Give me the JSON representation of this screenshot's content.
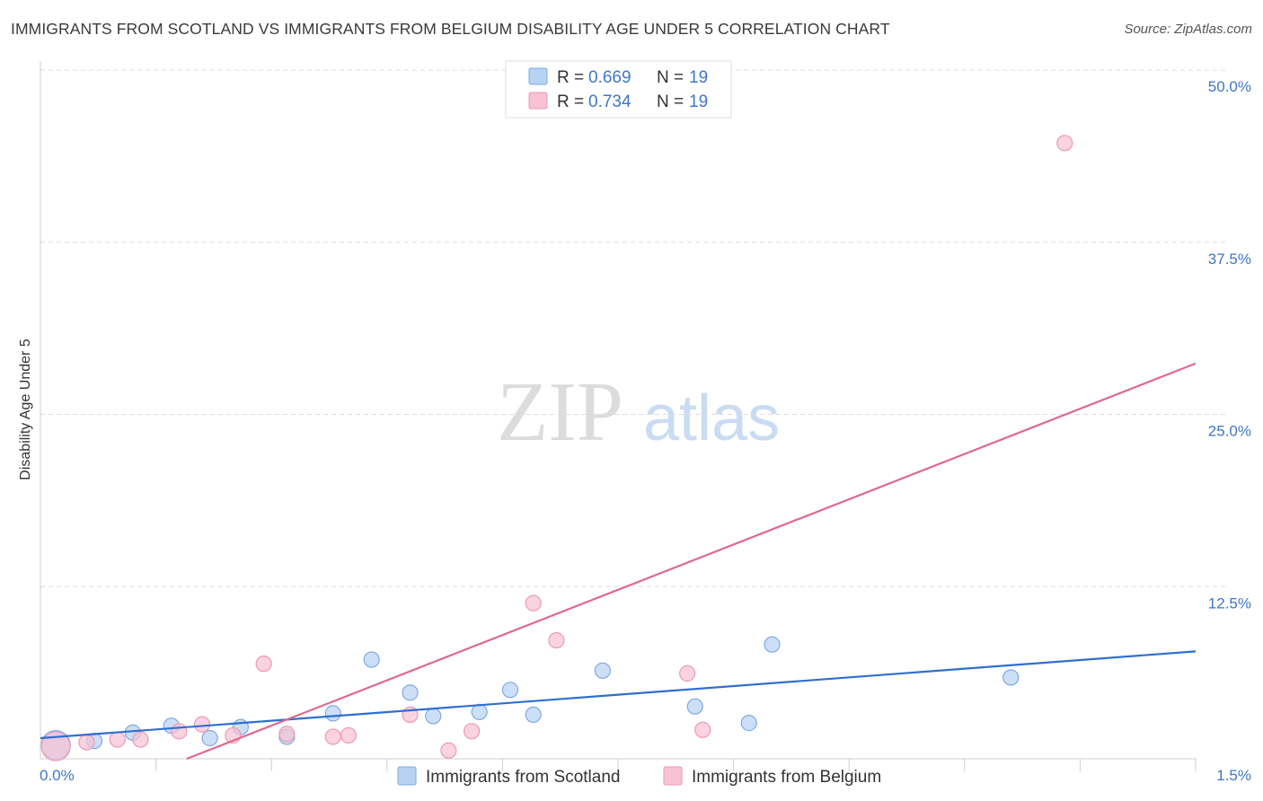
{
  "header": {
    "title": "IMMIGRANTS FROM SCOTLAND VS IMMIGRANTS FROM BELGIUM DISABILITY AGE UNDER 5 CORRELATION CHART",
    "source": "Source: ZipAtlas.com"
  },
  "watermark": {
    "zip": "ZIP",
    "atlas": "atlas"
  },
  "colors": {
    "blue_fill": "#b7d2f3",
    "blue_stroke": "#7eaae3",
    "blue_line": "#2f6fcf",
    "pink_fill": "#f7c2d3",
    "pink_stroke": "#ee98b4",
    "pink_line": "#e0688f",
    "tick_label": "#3f76c9",
    "grid": "#dddddd"
  },
  "legend_top": {
    "rows": [
      {
        "r_label": "R = ",
        "r_value": "0.669",
        "n_label": "N = ",
        "n_value": "19"
      },
      {
        "r_label": "R = ",
        "r_value": "0.734",
        "n_label": "N = ",
        "n_value": "19"
      }
    ]
  },
  "chart_data": {
    "type": "scatter",
    "title": "IMMIGRANTS FROM SCOTLAND VS IMMIGRANTS FROM BELGIUM DISABILITY AGE UNDER 5 CORRELATION CHART",
    "xlabel": "",
    "ylabel": "Disability Age Under 5",
    "xlim": [
      0,
      1.5
    ],
    "ylim": [
      0,
      50
    ],
    "x_tick_labels": [
      "0.0%",
      "1.5%"
    ],
    "y_ticks": [
      12.5,
      25.0,
      37.5,
      50.0
    ],
    "y_tick_labels": [
      "12.5%",
      "25.0%",
      "37.5%",
      "50.0%"
    ],
    "grid": true,
    "legend_position": "bottom-center",
    "series": [
      {
        "name": "Immigrants from Scotland",
        "color": "#7eaae3",
        "points": [
          {
            "x": 0.02,
            "y": 1.0,
            "large": true
          },
          {
            "x": 0.07,
            "y": 1.3
          },
          {
            "x": 0.12,
            "y": 1.9
          },
          {
            "x": 0.17,
            "y": 2.4
          },
          {
            "x": 0.22,
            "y": 1.5
          },
          {
            "x": 0.26,
            "y": 2.3
          },
          {
            "x": 0.32,
            "y": 1.6
          },
          {
            "x": 0.38,
            "y": 3.3
          },
          {
            "x": 0.43,
            "y": 7.2
          },
          {
            "x": 0.48,
            "y": 4.8
          },
          {
            "x": 0.51,
            "y": 3.1
          },
          {
            "x": 0.57,
            "y": 3.4
          },
          {
            "x": 0.61,
            "y": 5.0
          },
          {
            "x": 0.64,
            "y": 3.2
          },
          {
            "x": 0.73,
            "y": 6.4
          },
          {
            "x": 0.85,
            "y": 3.8
          },
          {
            "x": 0.92,
            "y": 2.6
          },
          {
            "x": 0.95,
            "y": 8.3
          },
          {
            "x": 1.26,
            "y": 5.9
          }
        ],
        "trend": {
          "x": [
            0,
            1.5
          ],
          "y": [
            1.5,
            7.8
          ]
        }
      },
      {
        "name": "Immigrants from Belgium",
        "color": "#ee98b4",
        "points": [
          {
            "x": 0.02,
            "y": 0.9,
            "large": true
          },
          {
            "x": 0.06,
            "y": 1.2
          },
          {
            "x": 0.1,
            "y": 1.4
          },
          {
            "x": 0.13,
            "y": 1.4
          },
          {
            "x": 0.18,
            "y": 2.0
          },
          {
            "x": 0.21,
            "y": 2.5
          },
          {
            "x": 0.25,
            "y": 1.7
          },
          {
            "x": 0.29,
            "y": 6.9
          },
          {
            "x": 0.32,
            "y": 1.8
          },
          {
            "x": 0.38,
            "y": 1.6
          },
          {
            "x": 0.4,
            "y": 1.7
          },
          {
            "x": 0.48,
            "y": 3.2
          },
          {
            "x": 0.53,
            "y": 0.6
          },
          {
            "x": 0.56,
            "y": 2.0
          },
          {
            "x": 0.64,
            "y": 11.3
          },
          {
            "x": 0.67,
            "y": 8.6
          },
          {
            "x": 0.84,
            "y": 6.2
          },
          {
            "x": 0.86,
            "y": 2.1
          },
          {
            "x": 1.33,
            "y": 44.7
          }
        ],
        "trend": {
          "x": [
            0.19,
            1.5
          ],
          "y": [
            0.0,
            28.7
          ]
        }
      }
    ]
  }
}
